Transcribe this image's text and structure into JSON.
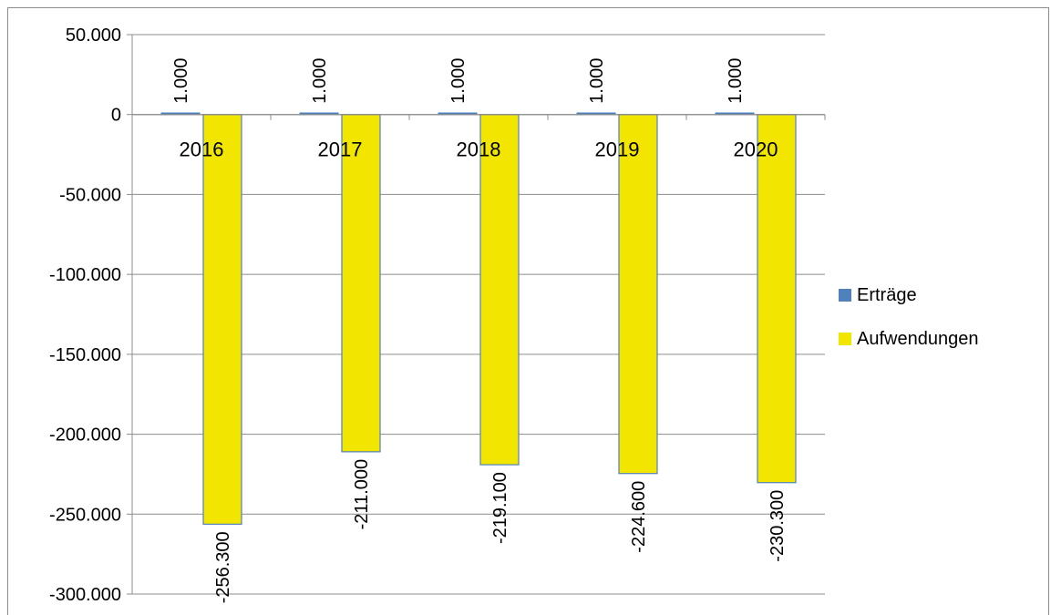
{
  "chart_data": {
    "type": "bar",
    "categories": [
      "2016",
      "2017",
      "2018",
      "2019",
      "2020"
    ],
    "series": [
      {
        "name": "Erträge",
        "values": [
          1000,
          1000,
          1000,
          1000,
          1000
        ],
        "color": "#4f81bd",
        "labels": [
          "1.000",
          "1.000",
          "1.000",
          "1.000",
          "1.000"
        ]
      },
      {
        "name": "Aufwendungen",
        "values": [
          -256300,
          -211000,
          -219100,
          -224600,
          -230300
        ],
        "color": "#f2e600",
        "labels": [
          "-256.300",
          "-211.000",
          "-219.100",
          "-224.600",
          "-230.300"
        ]
      }
    ],
    "ylim": [
      -300000,
      50000
    ],
    "yticks": [
      50000,
      0,
      -50000,
      -100000,
      -150000,
      -200000,
      -250000,
      -300000
    ],
    "ytick_labels": [
      "50.000",
      "0",
      "-50.000",
      "-100.000",
      "-150.000",
      "-200.000",
      "-250.000",
      "-300.000"
    ],
    "grid": true,
    "legend_position": "right",
    "title": "",
    "xlabel": "",
    "ylabel": ""
  }
}
